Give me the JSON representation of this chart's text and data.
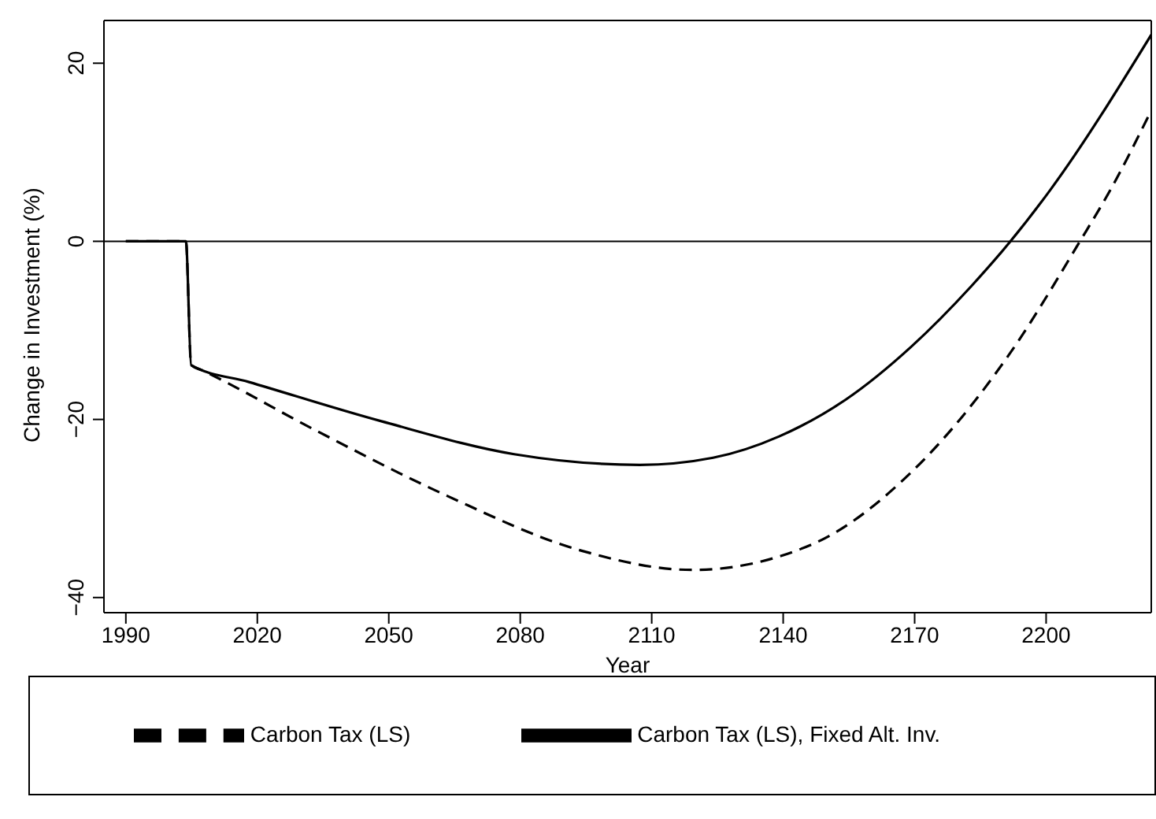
{
  "chart_data": {
    "type": "line",
    "xlabel": "Year",
    "ylabel": "Change in Investment (%)",
    "xlim": [
      1985,
      2224
    ],
    "xticks": [
      1990,
      2020,
      2050,
      2080,
      2110,
      2140,
      2170,
      2200
    ],
    "ylim": [
      -41.7,
      24.8
    ],
    "yticks": [
      -40,
      -20,
      0,
      20
    ],
    "grid": false,
    "legend": "bottom",
    "marker": "none",
    "ref_lines": [
      {
        "axis": "y",
        "value": 0,
        "color": "#000000"
      }
    ],
    "series": [
      {
        "name": "Carbon Tax (LS), Fixed Alt. Inv.",
        "color": "#000000",
        "line_style": "solid",
        "x": [
          1990,
          2003.7,
          2004.9,
          2018.1,
          2048.3,
          2078.6,
          2107.3,
          2124,
          2139.1,
          2154.2,
          2169.3,
          2183,
          2191.7,
          2201,
          2224
        ],
        "values": [
          0,
          0,
          -13.9,
          -15.8,
          -20.2,
          -23.9,
          -25.1,
          -24.3,
          -21.9,
          -17.8,
          -11.8,
          -5,
          -0.1,
          5.8,
          23.2
        ]
      },
      {
        "name": "Carbon Tax (LS)",
        "color": "#000000",
        "line_style": "dashed",
        "x": [
          1990,
          2003.7,
          2004.9,
          2007.5,
          2033.2,
          2063.4,
          2093.7,
          2119.4,
          2146.7,
          2169.3,
          2192,
          2207.6,
          2214.7,
          2224
        ],
        "values": [
          0,
          0,
          -13.9,
          -14.5,
          -21.2,
          -28.6,
          -34.7,
          -36.9,
          -34,
          -25.9,
          -12.4,
          -0.1,
          5.8,
          14.7
        ]
      }
    ]
  }
}
